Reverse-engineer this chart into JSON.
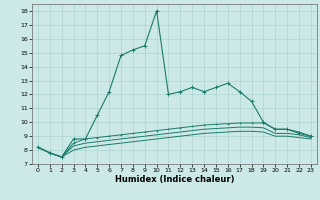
{
  "xlabel": "Humidex (Indice chaleur)",
  "bg_color": "#cce9e8",
  "grid_color": "#aed4d3",
  "line_color": "#1a7a6a",
  "xlim": [
    -0.5,
    23.5
  ],
  "ylim": [
    7,
    18.5
  ],
  "xticks": [
    0,
    1,
    2,
    3,
    4,
    5,
    6,
    7,
    8,
    9,
    10,
    11,
    12,
    13,
    14,
    15,
    16,
    17,
    18,
    19,
    20,
    21,
    22,
    23
  ],
  "yticks": [
    7,
    8,
    9,
    10,
    11,
    12,
    13,
    14,
    15,
    16,
    17,
    18
  ],
  "series1_x": [
    0,
    1,
    2,
    3,
    4,
    5,
    6,
    7,
    8,
    9,
    10,
    11,
    12,
    13,
    14,
    15,
    16,
    17,
    18,
    19,
    20,
    21,
    22,
    23
  ],
  "series1_y": [
    8.2,
    7.8,
    7.5,
    8.8,
    8.8,
    10.5,
    12.2,
    14.8,
    15.2,
    15.5,
    18.0,
    12.0,
    12.2,
    12.5,
    12.2,
    12.5,
    12.8,
    12.2,
    11.5,
    10.0,
    9.5,
    9.5,
    9.2,
    9.0
  ],
  "series2_x": [
    0,
    1,
    2,
    3,
    4,
    5,
    6,
    7,
    8,
    9,
    10,
    11,
    12,
    13,
    14,
    15,
    16,
    17,
    18,
    19,
    20,
    21,
    22,
    23
  ],
  "series2_y": [
    8.2,
    7.8,
    7.5,
    8.5,
    8.8,
    8.9,
    9.0,
    9.1,
    9.2,
    9.3,
    9.4,
    9.5,
    9.6,
    9.7,
    9.8,
    9.85,
    9.9,
    9.95,
    9.95,
    9.95,
    9.5,
    9.5,
    9.3,
    9.0
  ],
  "series3_x": [
    0,
    1,
    2,
    3,
    4,
    5,
    6,
    7,
    8,
    9,
    10,
    11,
    12,
    13,
    14,
    15,
    16,
    17,
    18,
    19,
    20,
    21,
    22,
    23
  ],
  "series3_y": [
    8.2,
    7.8,
    7.5,
    8.3,
    8.5,
    8.6,
    8.7,
    8.8,
    8.9,
    9.0,
    9.1,
    9.2,
    9.3,
    9.4,
    9.5,
    9.55,
    9.6,
    9.65,
    9.65,
    9.6,
    9.2,
    9.2,
    9.1,
    8.9
  ],
  "series4_x": [
    0,
    1,
    2,
    3,
    4,
    5,
    6,
    7,
    8,
    9,
    10,
    11,
    12,
    13,
    14,
    15,
    16,
    17,
    18,
    19,
    20,
    21,
    22,
    23
  ],
  "series4_y": [
    8.2,
    7.8,
    7.5,
    8.0,
    8.2,
    8.3,
    8.4,
    8.5,
    8.6,
    8.7,
    8.8,
    8.9,
    9.0,
    9.1,
    9.2,
    9.25,
    9.3,
    9.35,
    9.35,
    9.3,
    9.0,
    9.0,
    8.9,
    8.8
  ],
  "xlabel_fontsize": 6,
  "tick_fontsize": 4.5
}
